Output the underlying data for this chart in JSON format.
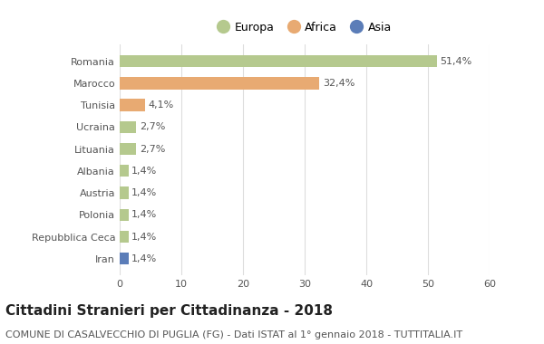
{
  "categories": [
    "Romania",
    "Marocco",
    "Tunisia",
    "Ucraina",
    "Lituania",
    "Albania",
    "Austria",
    "Polonia",
    "Repubblica Ceca",
    "Iran"
  ],
  "values": [
    51.4,
    32.4,
    4.1,
    2.7,
    2.7,
    1.4,
    1.4,
    1.4,
    1.4,
    1.4
  ],
  "labels": [
    "51,4%",
    "32,4%",
    "4,1%",
    "2,7%",
    "2,7%",
    "1,4%",
    "1,4%",
    "1,4%",
    "1,4%",
    "1,4%"
  ],
  "bar_colors": [
    "#b5c98e",
    "#e8aa72",
    "#e8aa72",
    "#b5c98e",
    "#b5c98e",
    "#b5c98e",
    "#b5c98e",
    "#b5c98e",
    "#b5c98e",
    "#5b7db8"
  ],
  "legend_labels": [
    "Europa",
    "Africa",
    "Asia"
  ],
  "legend_colors": [
    "#b5c98e",
    "#e8aa72",
    "#5b7db8"
  ],
  "xlim": [
    0,
    60
  ],
  "xticks": [
    0,
    10,
    20,
    30,
    40,
    50,
    60
  ],
  "title": "Cittadini Stranieri per Cittadinanza - 2018",
  "subtitle": "COMUNE DI CASALVECCHIO DI PUGLIA (FG) - Dati ISTAT al 1° gennaio 2018 - TUTTITALIA.IT",
  "background_color": "#ffffff",
  "grid_color": "#dddddd",
  "bar_height": 0.55,
  "title_fontsize": 11,
  "subtitle_fontsize": 8,
  "label_fontsize": 8,
  "tick_fontsize": 8,
  "legend_fontsize": 9
}
